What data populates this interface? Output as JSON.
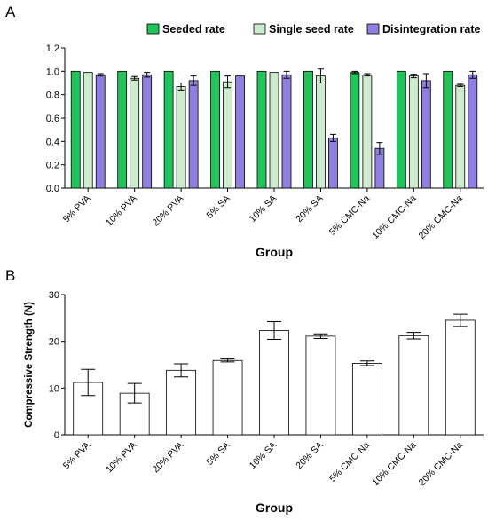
{
  "chart_data": [
    {
      "panel": "A",
      "type": "bar",
      "xlabel": "Group",
      "ylabel": "",
      "ylim": [
        0,
        1.2
      ],
      "yticks": [
        "0.0",
        "0.2",
        "0.4",
        "0.6",
        "0.8",
        "1.0",
        "1.2"
      ],
      "grid": false,
      "legend_position": "top-right",
      "categories": [
        "5% PVA",
        "10% PVA",
        "20% PVA",
        "5% SA",
        "10% SA",
        "20% SA",
        "5% CMC-Na",
        "10% CMC-Na",
        "20% CMC-Na"
      ],
      "series": [
        {
          "name": "Seeded rate",
          "color": "#21c45a",
          "values": [
            1.0,
            1.0,
            1.0,
            1.0,
            1.0,
            1.0,
            0.99,
            1.0,
            1.0
          ],
          "errors": [
            0.0,
            0.0,
            0.0,
            0.0,
            0.0,
            0.0,
            0.01,
            0.0,
            0.0
          ]
        },
        {
          "name": "Single seed rate",
          "color": "#cdeccd",
          "values": [
            0.99,
            0.94,
            0.87,
            0.91,
            0.99,
            0.96,
            0.97,
            0.96,
            0.88
          ],
          "errors": [
            0.0,
            0.015,
            0.03,
            0.05,
            0.0,
            0.06,
            0.01,
            0.015,
            0.01
          ]
        },
        {
          "name": "Disintegration rate",
          "color": "#8f7fe0",
          "values": [
            0.97,
            0.97,
            0.92,
            0.96,
            0.97,
            0.43,
            0.34,
            0.92,
            0.97
          ],
          "errors": [
            0.01,
            0.02,
            0.04,
            0.0,
            0.03,
            0.03,
            0.05,
            0.06,
            0.03
          ]
        }
      ]
    },
    {
      "panel": "B",
      "type": "bar",
      "xlabel": "Group",
      "ylabel": "Compressive Strength (N)",
      "ylim": [
        0,
        30
      ],
      "yticks": [
        "0",
        "10",
        "20",
        "30"
      ],
      "grid": false,
      "categories": [
        "5% PVA",
        "10% PVA",
        "20% PVA",
        "5% SA",
        "10% SA",
        "20% SA",
        "5% CMC-Na",
        "10% CMC-Na",
        "20% CMC-Na"
      ],
      "series": [
        {
          "color": "#ffffff",
          "values": [
            11.2,
            8.9,
            13.8,
            15.9,
            22.3,
            21.1,
            15.3,
            21.2,
            24.5
          ],
          "errors": [
            2.8,
            2.1,
            1.4,
            0.3,
            1.9,
            0.5,
            0.5,
            0.7,
            1.3
          ]
        }
      ]
    }
  ]
}
